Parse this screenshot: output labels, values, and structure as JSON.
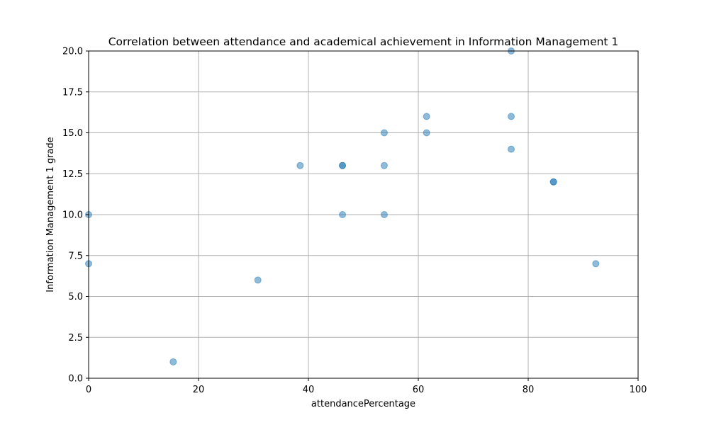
{
  "chart_data": {
    "type": "scatter",
    "title": "Correlation between attendance and academical achievement in Information Management 1",
    "xlabel": "attendancePercentage",
    "ylabel": "Information Management 1 grade",
    "xlim": [
      0,
      100
    ],
    "ylim": [
      0,
      20
    ],
    "xticks": [
      0,
      20,
      40,
      60,
      80,
      100
    ],
    "xtick_labels": [
      "0",
      "20",
      "40",
      "60",
      "80",
      "100"
    ],
    "yticks": [
      0,
      2.5,
      5,
      7.5,
      10,
      12.5,
      15,
      17.5,
      20
    ],
    "ytick_labels": [
      "0.0",
      "2.5",
      "5.0",
      "7.5",
      "10.0",
      "12.5",
      "15.0",
      "17.5",
      "20.0"
    ],
    "grid": true,
    "point_color": "#1f77b4",
    "point_opacity": 0.5,
    "points": [
      {
        "x": 0,
        "y": 10
      },
      {
        "x": 0,
        "y": 7
      },
      {
        "x": 15.4,
        "y": 1
      },
      {
        "x": 30.8,
        "y": 6
      },
      {
        "x": 38.5,
        "y": 13
      },
      {
        "x": 46.2,
        "y": 13
      },
      {
        "x": 46.2,
        "y": 13
      },
      {
        "x": 46.2,
        "y": 10
      },
      {
        "x": 53.8,
        "y": 15
      },
      {
        "x": 53.8,
        "y": 13
      },
      {
        "x": 53.8,
        "y": 10
      },
      {
        "x": 61.5,
        "y": 16
      },
      {
        "x": 61.5,
        "y": 15
      },
      {
        "x": 76.9,
        "y": 20
      },
      {
        "x": 76.9,
        "y": 16
      },
      {
        "x": 76.9,
        "y": 14
      },
      {
        "x": 84.6,
        "y": 12
      },
      {
        "x": 84.6,
        "y": 12
      },
      {
        "x": 92.3,
        "y": 7
      }
    ]
  }
}
